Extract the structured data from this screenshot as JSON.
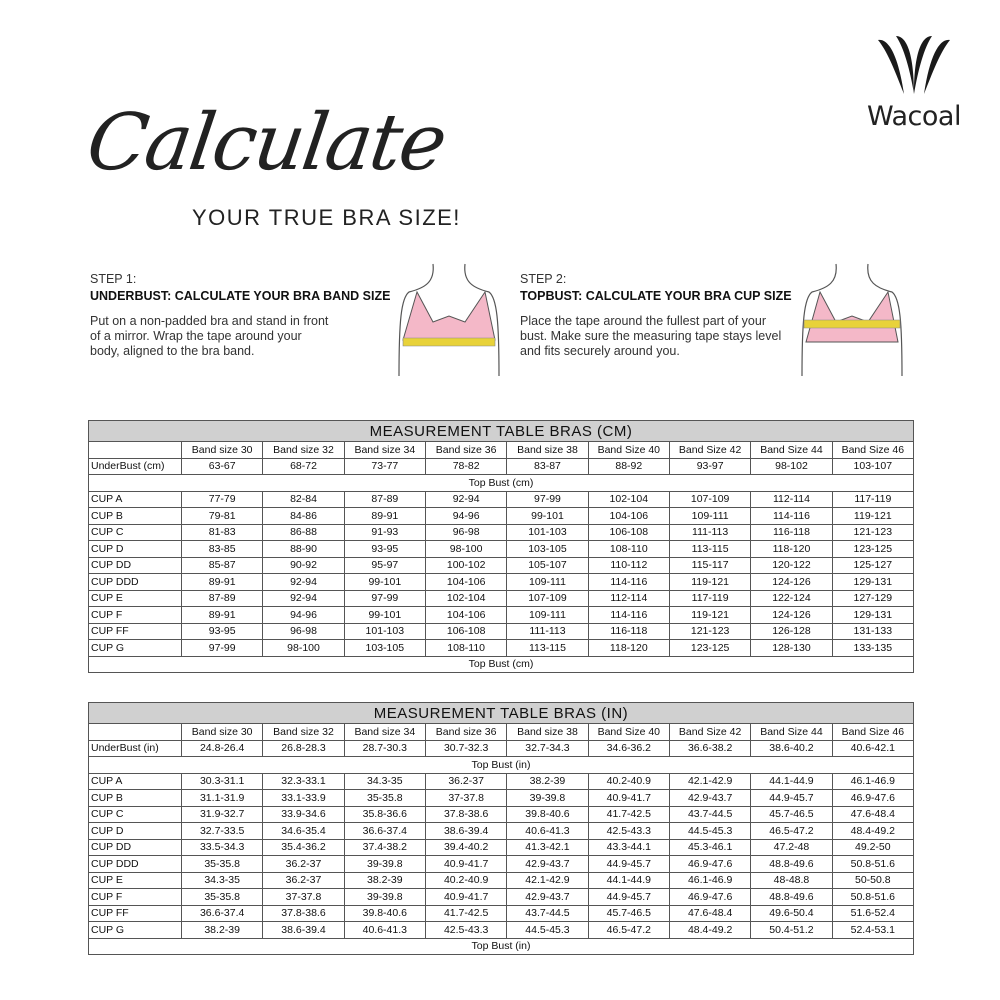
{
  "brand": {
    "name": "Wacoal"
  },
  "title": {
    "script": "Calculate",
    "subtitle": "YOUR TRUE BRA SIZE!"
  },
  "steps": [
    {
      "num": "STEP 1:",
      "head": "UNDERBUST: CALCULATE YOUR BRA BAND SIZE",
      "body": "Put on a non-padded bra and stand in front of a mirror. Wrap the tape around your body, aligned to the bra band."
    },
    {
      "num": "STEP 2:",
      "head": "TOPBUST: CALCULATE YOUR BRA CUP SIZE",
      "body": "Place the tape around the fullest part of your bust. Make sure the measuring tape stays level and fits securely around you."
    }
  ],
  "colors": {
    "bra": "#f4b8c8",
    "tape": "#e8d23a",
    "header_bg": "#d0d0d0"
  },
  "tables": [
    {
      "title": "MEASUREMENT TABLE BRAS (CM)",
      "bands": [
        "Band size 30",
        "Band size 32",
        "Band size 34",
        "Band size 36",
        "Band size 38",
        "Band Size 40",
        "Band Size 42",
        "Band Size 44",
        "Band Size 46"
      ],
      "underbust": {
        "label": "UnderBust (cm)",
        "values": [
          "63-67",
          "68-72",
          "73-77",
          "78-82",
          "83-87",
          "88-92",
          "93-97",
          "98-102",
          "103-107"
        ]
      },
      "topbust_label": "Top Bust (cm)",
      "rows": [
        {
          "label": "CUP A",
          "values": [
            "77-79",
            "82-84",
            "87-89",
            "92-94",
            "97-99",
            "102-104",
            "107-109",
            "112-114",
            "117-119"
          ]
        },
        {
          "label": "CUP B",
          "values": [
            "79-81",
            "84-86",
            "89-91",
            "94-96",
            "99-101",
            "104-106",
            "109-111",
            "114-116",
            "119-121"
          ]
        },
        {
          "label": "CUP C",
          "values": [
            "81-83",
            "86-88",
            "91-93",
            "96-98",
            "101-103",
            "106-108",
            "111-113",
            "116-118",
            "121-123"
          ]
        },
        {
          "label": "CUP D",
          "values": [
            "83-85",
            "88-90",
            "93-95",
            "98-100",
            "103-105",
            "108-110",
            "113-115",
            "118-120",
            "123-125"
          ]
        },
        {
          "label": "CUP DD",
          "values": [
            "85-87",
            "90-92",
            "95-97",
            "100-102",
            "105-107",
            "110-112",
            "115-117",
            "120-122",
            "125-127"
          ]
        },
        {
          "label": "CUP DDD",
          "values": [
            "89-91",
            "92-94",
            "99-101",
            "104-106",
            "109-111",
            "114-116",
            "119-121",
            "124-126",
            "129-131"
          ]
        },
        {
          "label": "CUP E",
          "values": [
            "87-89",
            "92-94",
            "97-99",
            "102-104",
            "107-109",
            "112-114",
            "117-119",
            "122-124",
            "127-129"
          ]
        },
        {
          "label": "CUP F",
          "values": [
            "89-91",
            "94-96",
            "99-101",
            "104-106",
            "109-111",
            "114-116",
            "119-121",
            "124-126",
            "129-131"
          ]
        },
        {
          "label": "CUP FF",
          "values": [
            "93-95",
            "96-98",
            "101-103",
            "106-108",
            "111-113",
            "116-118",
            "121-123",
            "126-128",
            "131-133"
          ]
        },
        {
          "label": "CUP G",
          "values": [
            "97-99",
            "98-100",
            "103-105",
            "108-110",
            "113-115",
            "118-120",
            "123-125",
            "128-130",
            "133-135"
          ]
        }
      ]
    },
    {
      "title": "MEASUREMENT TABLE BRAS (IN)",
      "bands": [
        "Band size 30",
        "Band size 32",
        "Band size 34",
        "Band size 36",
        "Band size 38",
        "Band Size 40",
        "Band Size 42",
        "Band Size 44",
        "Band Size 46"
      ],
      "underbust": {
        "label": "UnderBust (in)",
        "values": [
          "24.8-26.4",
          "26.8-28.3",
          "28.7-30.3",
          "30.7-32.3",
          "32.7-34.3",
          "34.6-36.2",
          "36.6-38.2",
          "38.6-40.2",
          "40.6-42.1"
        ]
      },
      "topbust_label": "Top Bust (in)",
      "rows": [
        {
          "label": "CUP A",
          "values": [
            "30.3-31.1",
            "32.3-33.1",
            "34.3-35",
            "36.2-37",
            "38.2-39",
            "40.2-40.9",
            "42.1-42.9",
            "44.1-44.9",
            "46.1-46.9"
          ]
        },
        {
          "label": "CUP B",
          "values": [
            "31.1-31.9",
            "33.1-33.9",
            "35-35.8",
            "37-37.8",
            "39-39.8",
            "40.9-41.7",
            "42.9-43.7",
            "44.9-45.7",
            "46.9-47.6"
          ]
        },
        {
          "label": "CUP C",
          "values": [
            "31.9-32.7",
            "33.9-34.6",
            "35.8-36.6",
            "37.8-38.6",
            "39.8-40.6",
            "41.7-42.5",
            "43.7-44.5",
            "45.7-46.5",
            "47.6-48.4"
          ]
        },
        {
          "label": "CUP D",
          "values": [
            "32.7-33.5",
            "34.6-35.4",
            "36.6-37.4",
            "38.6-39.4",
            "40.6-41.3",
            "42.5-43.3",
            "44.5-45.3",
            "46.5-47.2",
            "48.4-49.2"
          ]
        },
        {
          "label": "CUP DD",
          "values": [
            "33.5-34.3",
            "35.4-36.2",
            "37.4-38.2",
            "39.4-40.2",
            "41.3-42.1",
            "43.3-44.1",
            "45.3-46.1",
            "47.2-48",
            "49.2-50"
          ]
        },
        {
          "label": "CUP DDD",
          "values": [
            "35-35.8",
            "36.2-37",
            "39-39.8",
            "40.9-41.7",
            "42.9-43.7",
            "44.9-45.7",
            "46.9-47.6",
            "48.8-49.6",
            "50.8-51.6"
          ]
        },
        {
          "label": "CUP E",
          "values": [
            "34.3-35",
            "36.2-37",
            "38.2-39",
            "40.2-40.9",
            "42.1-42.9",
            "44.1-44.9",
            "46.1-46.9",
            "48-48.8",
            "50-50.8"
          ]
        },
        {
          "label": "CUP F",
          "values": [
            "35-35.8",
            "37-37.8",
            "39-39.8",
            "40.9-41.7",
            "42.9-43.7",
            "44.9-45.7",
            "46.9-47.6",
            "48.8-49.6",
            "50.8-51.6"
          ]
        },
        {
          "label": "CUP FF",
          "values": [
            "36.6-37.4",
            "37.8-38.6",
            "39.8-40.6",
            "41.7-42.5",
            "43.7-44.5",
            "45.7-46.5",
            "47.6-48.4",
            "49.6-50.4",
            "51.6-52.4"
          ]
        },
        {
          "label": "CUP G",
          "values": [
            "38.2-39",
            "38.6-39.4",
            "40.6-41.3",
            "42.5-43.3",
            "44.5-45.3",
            "46.5-47.2",
            "48.4-49.2",
            "50.4-51.2",
            "52.4-53.1"
          ]
        }
      ]
    }
  ]
}
